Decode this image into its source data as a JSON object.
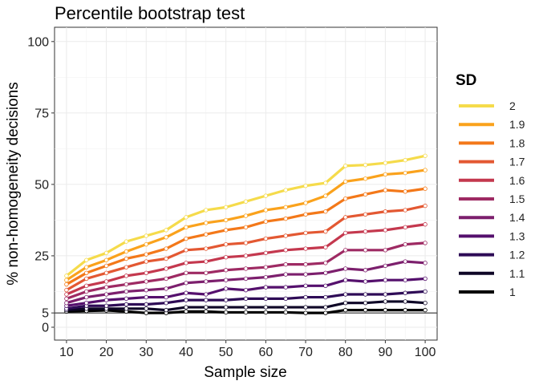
{
  "chart_data": {
    "type": "line",
    "title": "Percentile bootstrap test",
    "xlabel": "Sample size",
    "ylabel": "% non-homogeneity decisions",
    "xlim": [
      7,
      103
    ],
    "ylim": [
      -4.5,
      105
    ],
    "xticks": [
      10,
      20,
      30,
      40,
      50,
      60,
      70,
      80,
      90,
      100
    ],
    "yticks": [
      0,
      5,
      25,
      50,
      75,
      100
    ],
    "reference_line": 5,
    "grid": true,
    "legend": {
      "title": "SD",
      "position": "right"
    },
    "x": [
      10,
      15,
      20,
      25,
      30,
      35,
      40,
      45,
      50,
      55,
      60,
      65,
      70,
      75,
      80,
      85,
      90,
      95,
      100
    ],
    "series": [
      {
        "name": "2",
        "color": "#f5db4b",
        "values": [
          18.0,
          23.5,
          26.0,
          30.0,
          32.0,
          34.0,
          38.5,
          41.0,
          42.0,
          44.0,
          46.0,
          48.0,
          49.5,
          50.5,
          56.5,
          56.8,
          57.5,
          58.5,
          60.0
        ]
      },
      {
        "name": "1.9",
        "color": "#faa21c",
        "values": [
          16.5,
          21.0,
          23.5,
          26.5,
          29.0,
          31.5,
          35.0,
          36.5,
          37.5,
          39.0,
          41.0,
          42.0,
          43.5,
          46.0,
          51.0,
          52.0,
          53.5,
          54.0,
          55.0
        ]
      },
      {
        "name": "1.8",
        "color": "#f37819",
        "values": [
          15.0,
          19.0,
          21.5,
          24.0,
          25.5,
          27.5,
          31.0,
          32.5,
          34.0,
          35.0,
          37.0,
          38.0,
          39.5,
          40.5,
          45.0,
          46.5,
          48.0,
          47.5,
          48.5
        ]
      },
      {
        "name": "1.7",
        "color": "#e35832",
        "values": [
          13.0,
          17.0,
          19.0,
          21.0,
          23.0,
          24.0,
          27.0,
          27.5,
          29.0,
          29.5,
          31.0,
          32.0,
          33.0,
          33.5,
          38.5,
          39.5,
          40.5,
          41.0,
          42.5
        ]
      },
      {
        "name": "1.6",
        "color": "#c4384e",
        "values": [
          11.5,
          14.5,
          16.0,
          18.0,
          19.0,
          20.5,
          22.5,
          23.0,
          24.5,
          25.0,
          26.0,
          27.0,
          27.5,
          28.0,
          33.0,
          33.5,
          34.0,
          35.0,
          36.0
        ]
      },
      {
        "name": "1.5",
        "color": "#9e2a63",
        "values": [
          10.0,
          12.5,
          14.0,
          15.0,
          16.0,
          17.0,
          19.0,
          19.0,
          20.0,
          20.5,
          21.0,
          22.0,
          22.0,
          22.5,
          27.0,
          27.0,
          27.0,
          29.0,
          29.5
        ]
      },
      {
        "name": "1.4",
        "color": "#7c1f6d",
        "values": [
          8.5,
          10.5,
          11.5,
          12.5,
          13.0,
          13.5,
          15.5,
          16.0,
          16.5,
          17.0,
          17.5,
          18.5,
          18.5,
          19.0,
          20.5,
          20.0,
          21.5,
          23.0,
          22.5
        ]
      },
      {
        "name": "1.3",
        "color": "#55106d",
        "values": [
          7.5,
          8.5,
          9.5,
          10.0,
          10.5,
          10.5,
          12.0,
          11.5,
          13.5,
          13.0,
          14.0,
          14.0,
          14.5,
          14.5,
          16.5,
          16.0,
          16.5,
          16.5,
          17.0
        ]
      },
      {
        "name": "1.2",
        "color": "#2e0b56",
        "values": [
          6.5,
          7.5,
          7.5,
          8.0,
          8.0,
          8.5,
          9.5,
          9.5,
          9.5,
          10.0,
          10.0,
          10.0,
          10.5,
          10.5,
          11.5,
          11.5,
          11.5,
          12.0,
          12.5
        ]
      },
      {
        "name": "1.1",
        "color": "#0e0626",
        "values": [
          6.0,
          6.5,
          6.5,
          6.5,
          6.5,
          6.0,
          7.0,
          7.0,
          7.0,
          7.0,
          7.0,
          7.0,
          7.0,
          7.0,
          8.5,
          8.5,
          9.0,
          9.0,
          8.5
        ]
      },
      {
        "name": "1",
        "color": "#000000",
        "values": [
          5.5,
          5.7,
          5.9,
          5.5,
          5.0,
          5.0,
          5.5,
          5.5,
          5.2,
          5.2,
          5.2,
          5.2,
          5.0,
          5.0,
          6.0,
          6.0,
          6.0,
          6.0,
          6.0
        ]
      }
    ]
  }
}
